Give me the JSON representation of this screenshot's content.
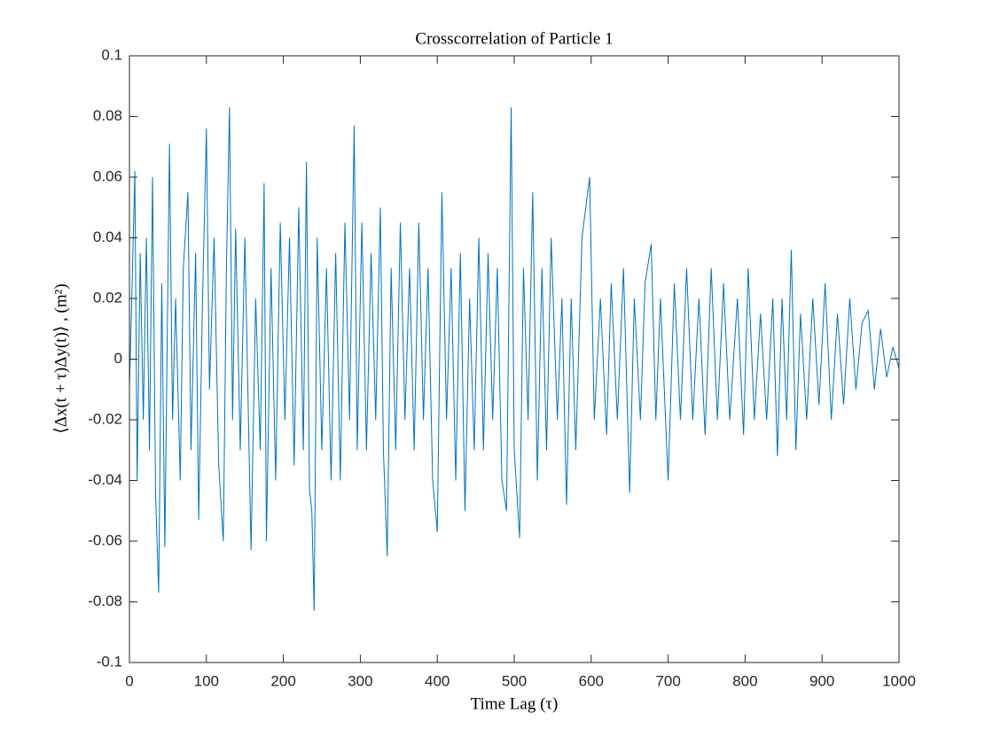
{
  "chart_data": {
    "type": "line",
    "title": "Crosscorrelation of Particle 1",
    "xlabel": "Time Lag (τ)",
    "ylabel": "⟨Δx(t + τ)Δy(t)⟩ , (m²)",
    "color": "#0072bd",
    "xlim": [
      0,
      1000
    ],
    "xticks": [
      0,
      100,
      200,
      300,
      400,
      500,
      600,
      700,
      800,
      900,
      1000
    ],
    "ylim": [
      -0.1,
      0.1
    ],
    "yticks": [
      -0.1,
      -0.08,
      -0.06,
      -0.04,
      -0.02,
      0,
      0.02,
      0.04,
      0.06,
      0.08,
      0.1
    ],
    "x": [
      0,
      4,
      7,
      10,
      14,
      18,
      22,
      26,
      30,
      34,
      38,
      42,
      46,
      52,
      56,
      60,
      66,
      70,
      76,
      80,
      86,
      90,
      95,
      100,
      104,
      110,
      116,
      122,
      126,
      130,
      134,
      138,
      144,
      150,
      158,
      164,
      170,
      175,
      178,
      184,
      190,
      196,
      202,
      208,
      214,
      220,
      226,
      230,
      234,
      237,
      240,
      244,
      250,
      256,
      262,
      268,
      274,
      280,
      286,
      292,
      296,
      302,
      308,
      314,
      320,
      326,
      330,
      335,
      340,
      346,
      352,
      358,
      364,
      370,
      376,
      382,
      388,
      394,
      400,
      406,
      412,
      418,
      424,
      430,
      436,
      442,
      448,
      454,
      460,
      466,
      472,
      478,
      484,
      490,
      496,
      500,
      507,
      512,
      518,
      524,
      530,
      536,
      542,
      548,
      556,
      562,
      568,
      574,
      580,
      588,
      598,
      604,
      612,
      620,
      626,
      634,
      642,
      650,
      656,
      664,
      670,
      678,
      684,
      690,
      700,
      708,
      716,
      724,
      732,
      740,
      748,
      756,
      764,
      772,
      780,
      790,
      798,
      804,
      812,
      820,
      828,
      836,
      842,
      848,
      854,
      860,
      866,
      872,
      880,
      888,
      896,
      904,
      912,
      920,
      928,
      936,
      944,
      952,
      960,
      968,
      976,
      984,
      992,
      1000
    ],
    "values": [
      -0.01,
      0.03,
      0.062,
      -0.04,
      0.035,
      -0.02,
      0.04,
      -0.03,
      0.06,
      -0.045,
      -0.077,
      0.025,
      -0.062,
      0.071,
      -0.02,
      0.02,
      -0.04,
      0.03,
      0.055,
      -0.03,
      0.035,
      -0.053,
      0.02,
      0.076,
      -0.01,
      0.04,
      -0.035,
      -0.06,
      0.03,
      0.083,
      -0.02,
      0.043,
      -0.03,
      0.04,
      -0.063,
      0.02,
      -0.03,
      0.058,
      -0.06,
      0.03,
      -0.04,
      0.045,
      -0.02,
      0.04,
      -0.035,
      0.05,
      -0.03,
      0.065,
      -0.043,
      -0.05,
      -0.083,
      0.04,
      -0.03,
      0.03,
      -0.04,
      0.035,
      -0.04,
      0.045,
      -0.02,
      0.077,
      -0.03,
      0.045,
      -0.03,
      0.035,
      -0.02,
      0.05,
      -0.03,
      -0.065,
      0.03,
      -0.03,
      0.045,
      -0.02,
      0.03,
      -0.03,
      0.045,
      -0.02,
      0.03,
      -0.04,
      -0.057,
      0.055,
      -0.02,
      0.03,
      -0.04,
      0.035,
      -0.05,
      0.02,
      -0.03,
      0.04,
      -0.03,
      0.035,
      -0.02,
      0.03,
      -0.04,
      -0.05,
      0.083,
      -0.03,
      -0.059,
      0.03,
      -0.02,
      0.055,
      -0.04,
      0.03,
      -0.03,
      0.04,
      -0.02,
      0.02,
      -0.048,
      0.02,
      -0.03,
      0.04,
      0.06,
      -0.02,
      0.02,
      -0.025,
      0.025,
      -0.02,
      0.03,
      -0.044,
      0.02,
      -0.02,
      0.025,
      0.038,
      -0.02,
      0.02,
      -0.04,
      0.025,
      -0.02,
      0.03,
      -0.02,
      0.02,
      -0.025,
      0.03,
      -0.02,
      0.025,
      -0.02,
      0.02,
      -0.025,
      0.03,
      -0.02,
      0.015,
      -0.02,
      0.02,
      -0.032,
      0.02,
      -0.02,
      0.036,
      -0.03,
      0.015,
      -0.02,
      0.02,
      -0.015,
      0.025,
      -0.02,
      0.015,
      -0.015,
      0.02,
      -0.01,
      0.012,
      0.016,
      -0.01,
      0.01,
      -0.006,
      0.004,
      -0.003
    ]
  }
}
